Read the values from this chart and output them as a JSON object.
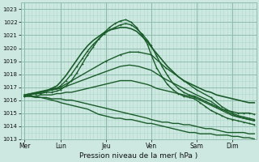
{
  "title": "Pression niveau de la mer( hPa )",
  "xlim": [
    0,
    130
  ],
  "ylim": [
    1013,
    1023.5
  ],
  "yticks": [
    1013,
    1014,
    1015,
    1016,
    1017,
    1018,
    1019,
    1020,
    1021,
    1022,
    1023
  ],
  "xtick_labels": [
    "Mer",
    "Lun",
    "Jeu",
    "Ven",
    "Sam",
    "Dim"
  ],
  "xtick_positions": [
    2,
    22,
    47,
    72,
    97,
    117
  ],
  "bg_color": "#cce8e0",
  "grid_minor_color": "#b0d8cc",
  "grid_major_color": "#88b8a8",
  "line_color": "#1a5c2a",
  "series": [
    {
      "points": [
        [
          2,
          1016.3
        ],
        [
          5,
          1016.4
        ],
        [
          8,
          1016.5
        ],
        [
          11,
          1016.5
        ],
        [
          14,
          1016.6
        ],
        [
          17,
          1016.6
        ],
        [
          20,
          1016.7
        ],
        [
          22,
          1016.8
        ],
        [
          25,
          1017.1
        ],
        [
          28,
          1017.5
        ],
        [
          31,
          1018.1
        ],
        [
          34,
          1018.8
        ],
        [
          37,
          1019.5
        ],
        [
          40,
          1020.1
        ],
        [
          43,
          1020.7
        ],
        [
          46,
          1021.2
        ],
        [
          49,
          1021.6
        ],
        [
          52,
          1021.9
        ],
        [
          55,
          1022.1
        ],
        [
          58,
          1022.2
        ],
        [
          61,
          1022.0
        ],
        [
          64,
          1021.6
        ],
        [
          67,
          1021.0
        ],
        [
          70,
          1020.3
        ],
        [
          72,
          1019.5
        ],
        [
          75,
          1018.5
        ],
        [
          78,
          1017.8
        ],
        [
          81,
          1017.2
        ],
        [
          84,
          1016.8
        ],
        [
          87,
          1016.5
        ],
        [
          90,
          1016.3
        ],
        [
          93,
          1016.2
        ],
        [
          96,
          1016.1
        ],
        [
          99,
          1015.8
        ],
        [
          102,
          1015.5
        ],
        [
          105,
          1015.2
        ],
        [
          108,
          1015.0
        ],
        [
          111,
          1014.8
        ],
        [
          114,
          1014.6
        ],
        [
          117,
          1014.5
        ],
        [
          120,
          1014.4
        ],
        [
          123,
          1014.3
        ],
        [
          126,
          1014.2
        ],
        [
          129,
          1014.1
        ]
      ],
      "marker": true,
      "lw": 1.0
    },
    {
      "points": [
        [
          2,
          1016.3
        ],
        [
          5,
          1016.4
        ],
        [
          8,
          1016.5
        ],
        [
          11,
          1016.6
        ],
        [
          14,
          1016.7
        ],
        [
          17,
          1016.8
        ],
        [
          20,
          1016.9
        ],
        [
          22,
          1017.1
        ],
        [
          25,
          1017.5
        ],
        [
          28,
          1018.0
        ],
        [
          31,
          1018.6
        ],
        [
          34,
          1019.2
        ],
        [
          37,
          1019.8
        ],
        [
          40,
          1020.3
        ],
        [
          43,
          1020.7
        ],
        [
          46,
          1021.1
        ],
        [
          49,
          1021.4
        ],
        [
          52,
          1021.6
        ],
        [
          55,
          1021.8
        ],
        [
          58,
          1021.9
        ],
        [
          61,
          1021.8
        ],
        [
          64,
          1021.5
        ],
        [
          67,
          1021.1
        ],
        [
          70,
          1020.6
        ],
        [
          72,
          1020.2
        ],
        [
          75,
          1019.4
        ],
        [
          78,
          1018.6
        ],
        [
          81,
          1017.9
        ],
        [
          84,
          1017.3
        ],
        [
          87,
          1016.9
        ],
        [
          90,
          1016.6
        ],
        [
          93,
          1016.4
        ],
        [
          96,
          1016.3
        ],
        [
          99,
          1016.1
        ],
        [
          102,
          1015.9
        ],
        [
          105,
          1015.7
        ],
        [
          108,
          1015.5
        ],
        [
          111,
          1015.3
        ],
        [
          114,
          1015.2
        ],
        [
          117,
          1015.1
        ],
        [
          120,
          1015.0
        ],
        [
          123,
          1015.0
        ],
        [
          126,
          1015.0
        ],
        [
          129,
          1014.9
        ]
      ],
      "marker": true,
      "lw": 1.0
    },
    {
      "points": [
        [
          2,
          1016.3
        ],
        [
          5,
          1016.4
        ],
        [
          8,
          1016.5
        ],
        [
          11,
          1016.6
        ],
        [
          14,
          1016.7
        ],
        [
          17,
          1016.9
        ],
        [
          20,
          1017.1
        ],
        [
          22,
          1017.4
        ],
        [
          25,
          1017.9
        ],
        [
          28,
          1018.5
        ],
        [
          31,
          1019.1
        ],
        [
          34,
          1019.7
        ],
        [
          37,
          1020.2
        ],
        [
          40,
          1020.6
        ],
        [
          43,
          1020.9
        ],
        [
          46,
          1021.2
        ],
        [
          49,
          1021.4
        ],
        [
          52,
          1021.5
        ],
        [
          55,
          1021.6
        ],
        [
          58,
          1021.6
        ],
        [
          61,
          1021.5
        ],
        [
          64,
          1021.3
        ],
        [
          67,
          1020.9
        ],
        [
          70,
          1020.5
        ],
        [
          72,
          1020.1
        ],
        [
          75,
          1019.6
        ],
        [
          78,
          1019.1
        ],
        [
          81,
          1018.6
        ],
        [
          84,
          1018.2
        ],
        [
          87,
          1017.8
        ],
        [
          90,
          1017.5
        ],
        [
          93,
          1017.3
        ],
        [
          96,
          1017.1
        ],
        [
          99,
          1016.9
        ],
        [
          102,
          1016.7
        ],
        [
          105,
          1016.6
        ],
        [
          108,
          1016.4
        ],
        [
          111,
          1016.3
        ],
        [
          114,
          1016.2
        ],
        [
          117,
          1016.1
        ],
        [
          120,
          1016.0
        ],
        [
          123,
          1015.9
        ],
        [
          126,
          1015.8
        ],
        [
          129,
          1015.8
        ]
      ],
      "marker": false,
      "lw": 1.2
    },
    {
      "points": [
        [
          2,
          1016.3
        ],
        [
          5,
          1016.3
        ],
        [
          8,
          1016.3
        ],
        [
          11,
          1016.4
        ],
        [
          14,
          1016.4
        ],
        [
          17,
          1016.4
        ],
        [
          20,
          1016.5
        ],
        [
          22,
          1016.5
        ],
        [
          25,
          1016.6
        ],
        [
          28,
          1016.6
        ],
        [
          31,
          1016.7
        ],
        [
          34,
          1016.8
        ],
        [
          37,
          1016.9
        ],
        [
          40,
          1017.0
        ],
        [
          43,
          1017.1
        ],
        [
          46,
          1017.2
        ],
        [
          49,
          1017.3
        ],
        [
          52,
          1017.4
        ],
        [
          55,
          1017.5
        ],
        [
          58,
          1017.5
        ],
        [
          61,
          1017.5
        ],
        [
          64,
          1017.4
        ],
        [
          67,
          1017.3
        ],
        [
          70,
          1017.2
        ],
        [
          72,
          1017.1
        ],
        [
          75,
          1016.9
        ],
        [
          78,
          1016.8
        ],
        [
          81,
          1016.7
        ],
        [
          84,
          1016.6
        ],
        [
          87,
          1016.5
        ],
        [
          90,
          1016.4
        ],
        [
          93,
          1016.3
        ],
        [
          96,
          1016.2
        ],
        [
          99,
          1016.0
        ],
        [
          102,
          1015.8
        ],
        [
          105,
          1015.6
        ],
        [
          108,
          1015.4
        ],
        [
          111,
          1015.2
        ],
        [
          114,
          1015.0
        ],
        [
          117,
          1014.8
        ],
        [
          120,
          1014.7
        ],
        [
          123,
          1014.6
        ],
        [
          126,
          1014.5
        ],
        [
          129,
          1014.4
        ]
      ],
      "marker": false,
      "lw": 1.0
    },
    {
      "points": [
        [
          2,
          1016.3
        ],
        [
          5,
          1016.3
        ],
        [
          8,
          1016.3
        ],
        [
          11,
          1016.2
        ],
        [
          14,
          1016.2
        ],
        [
          17,
          1016.1
        ],
        [
          20,
          1016.1
        ],
        [
          22,
          1016.1
        ],
        [
          25,
          1016.0
        ],
        [
          28,
          1016.0
        ],
        [
          31,
          1015.9
        ],
        [
          34,
          1015.8
        ],
        [
          37,
          1015.7
        ],
        [
          40,
          1015.6
        ],
        [
          43,
          1015.5
        ],
        [
          46,
          1015.4
        ],
        [
          49,
          1015.3
        ],
        [
          52,
          1015.2
        ],
        [
          55,
          1015.1
        ],
        [
          58,
          1015.0
        ],
        [
          61,
          1014.9
        ],
        [
          64,
          1014.8
        ],
        [
          67,
          1014.7
        ],
        [
          70,
          1014.6
        ],
        [
          72,
          1014.5
        ],
        [
          75,
          1014.4
        ],
        [
          78,
          1014.3
        ],
        [
          81,
          1014.3
        ],
        [
          84,
          1014.2
        ],
        [
          87,
          1014.2
        ],
        [
          90,
          1014.1
        ],
        [
          93,
          1014.1
        ],
        [
          96,
          1014.0
        ],
        [
          99,
          1013.9
        ],
        [
          102,
          1013.8
        ],
        [
          105,
          1013.8
        ],
        [
          108,
          1013.7
        ],
        [
          111,
          1013.6
        ],
        [
          114,
          1013.5
        ],
        [
          117,
          1013.5
        ],
        [
          120,
          1013.5
        ],
        [
          123,
          1013.5
        ],
        [
          126,
          1013.4
        ],
        [
          129,
          1013.4
        ]
      ],
      "marker": false,
      "lw": 1.0
    },
    {
      "points": [
        [
          2,
          1016.3
        ],
        [
          5,
          1016.3
        ],
        [
          8,
          1016.2
        ],
        [
          11,
          1016.2
        ],
        [
          14,
          1016.1
        ],
        [
          17,
          1016.0
        ],
        [
          20,
          1015.9
        ],
        [
          22,
          1015.8
        ],
        [
          25,
          1015.7
        ],
        [
          28,
          1015.6
        ],
        [
          31,
          1015.5
        ],
        [
          34,
          1015.4
        ],
        [
          37,
          1015.3
        ],
        [
          40,
          1015.1
        ],
        [
          43,
          1014.9
        ],
        [
          46,
          1014.8
        ],
        [
          49,
          1014.7
        ],
        [
          52,
          1014.6
        ],
        [
          55,
          1014.6
        ],
        [
          58,
          1014.5
        ],
        [
          61,
          1014.5
        ],
        [
          64,
          1014.4
        ],
        [
          67,
          1014.3
        ],
        [
          70,
          1014.2
        ],
        [
          72,
          1014.2
        ],
        [
          75,
          1014.1
        ],
        [
          78,
          1014.0
        ],
        [
          81,
          1013.9
        ],
        [
          84,
          1013.8
        ],
        [
          87,
          1013.7
        ],
        [
          90,
          1013.6
        ],
        [
          93,
          1013.5
        ],
        [
          96,
          1013.5
        ],
        [
          99,
          1013.4
        ],
        [
          102,
          1013.4
        ],
        [
          105,
          1013.4
        ],
        [
          108,
          1013.3
        ],
        [
          111,
          1013.3
        ],
        [
          114,
          1013.3
        ],
        [
          117,
          1013.2
        ],
        [
          120,
          1013.2
        ],
        [
          123,
          1013.1
        ],
        [
          126,
          1013.1
        ],
        [
          129,
          1013.0
        ]
      ],
      "marker": false,
      "lw": 1.0
    },
    {
      "points": [
        [
          2,
          1016.4
        ],
        [
          22,
          1017.0
        ],
        [
          47,
          1019.0
        ],
        [
          55,
          1019.5
        ],
        [
          60,
          1019.7
        ],
        [
          65,
          1019.7
        ],
        [
          72,
          1019.5
        ],
        [
          80,
          1018.5
        ],
        [
          90,
          1017.5
        ],
        [
          97,
          1016.8
        ],
        [
          105,
          1016.2
        ],
        [
          111,
          1015.5
        ],
        [
          117,
          1015.0
        ],
        [
          120,
          1014.8
        ],
        [
          123,
          1014.7
        ],
        [
          126,
          1014.6
        ],
        [
          129,
          1014.5
        ]
      ],
      "marker": true,
      "lw": 1.0
    },
    {
      "points": [
        [
          2,
          1016.4
        ],
        [
          22,
          1016.9
        ],
        [
          47,
          1018.2
        ],
        [
          55,
          1018.6
        ],
        [
          60,
          1018.7
        ],
        [
          65,
          1018.6
        ],
        [
          72,
          1018.3
        ],
        [
          80,
          1017.6
        ],
        [
          90,
          1016.9
        ],
        [
          97,
          1016.4
        ],
        [
          105,
          1015.9
        ],
        [
          111,
          1015.3
        ],
        [
          117,
          1014.9
        ],
        [
          120,
          1014.7
        ],
        [
          123,
          1014.6
        ],
        [
          126,
          1014.5
        ],
        [
          129,
          1014.4
        ]
      ],
      "marker": false,
      "lw": 1.0
    }
  ]
}
